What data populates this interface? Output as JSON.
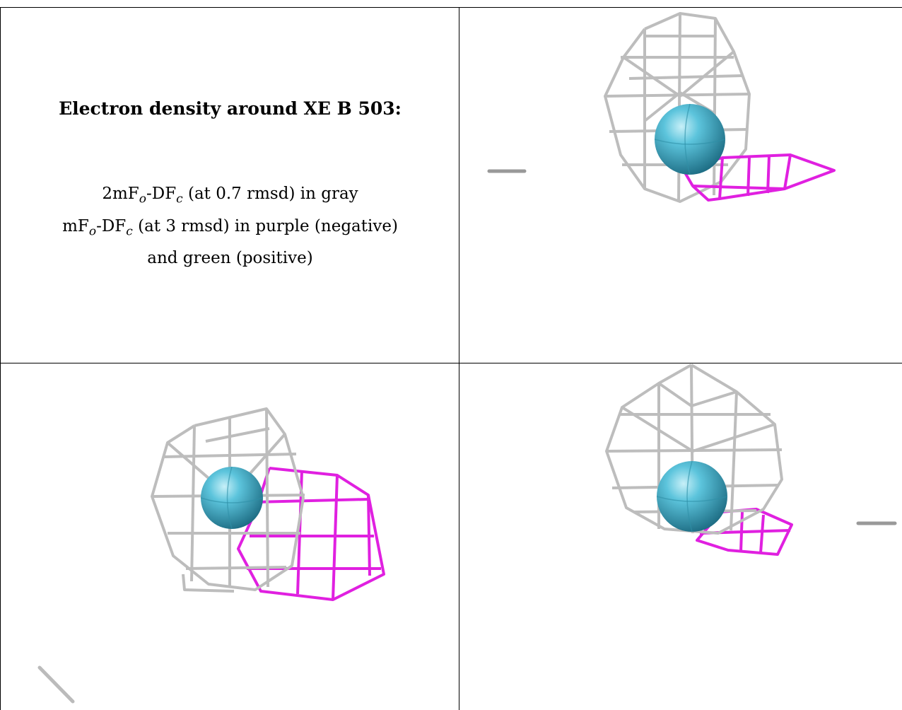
{
  "caption": {
    "title": "Electron density around XE B 503:",
    "legend": [
      {
        "parts": [
          {
            "t": "2mF"
          },
          {
            "sub": "o"
          },
          {
            "t": "-DF"
          },
          {
            "sub": "c"
          },
          {
            "t": " (at 0.7 rmsd) in gray"
          }
        ]
      },
      {
        "parts": [
          {
            "t": "mF"
          },
          {
            "sub": "o"
          },
          {
            "t": "-DF"
          },
          {
            "sub": "c"
          },
          {
            "t": " (at 3 rmsd) in purple (negative)"
          }
        ]
      },
      {
        "parts": [
          {
            "t": "and green (positive)"
          }
        ]
      }
    ]
  },
  "colors": {
    "mesh_2fofc": "#b9b9b9",
    "mesh_fofc_negative": "#e020e0",
    "atom": "#3fa9c2"
  },
  "views": [
    {
      "name": "view-top-right",
      "atom": "XE"
    },
    {
      "name": "view-bottom-left",
      "atom": "XE"
    },
    {
      "name": "view-bottom-right",
      "atom": "XE"
    }
  ]
}
